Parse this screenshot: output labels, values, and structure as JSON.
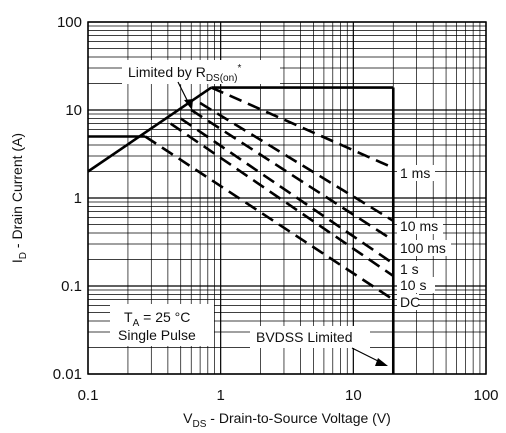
{
  "chart_data": {
    "type": "line",
    "title": "",
    "scale": {
      "x": "log",
      "y": "log"
    },
    "xlim": [
      0.1,
      100
    ],
    "ylim": [
      0.01,
      100
    ],
    "grid": true,
    "xlabel": {
      "prefix": "V",
      "sub": "DS",
      "rest": " - Drain-to-Source Voltage (V)"
    },
    "ylabel": {
      "prefix": "I",
      "sub": "D",
      "rest": " - Drain Current (A)"
    },
    "x_ticks": [
      {
        "value": 0.1,
        "label": "0.1"
      },
      {
        "value": 1,
        "label": "1"
      },
      {
        "value": 10,
        "label": "10"
      },
      {
        "value": 100,
        "label": "100"
      }
    ],
    "y_ticks": [
      {
        "value": 0.01,
        "label": "0.01"
      },
      {
        "value": 0.1,
        "label": "0.1"
      },
      {
        "value": 1,
        "label": "1"
      },
      {
        "value": 10,
        "label": "10"
      },
      {
        "value": 100,
        "label": "100"
      }
    ],
    "limits": {
      "rdson_line": {
        "x": [
          0.1,
          0.85
        ],
        "y": [
          2,
          18
        ]
      },
      "pulse_current_1ms": {
        "x": [
          0.85,
          20
        ],
        "y": 18
      },
      "dc_current": {
        "x": [
          0.1,
          0.27
        ],
        "y": 5
      },
      "bvdss_vertical": {
        "x": 20,
        "y": [
          0.01,
          18
        ]
      }
    },
    "series": [
      {
        "name": "1 ms",
        "x": [
          0.85,
          20
        ],
        "y": [
          18,
          2.2
        ]
      },
      {
        "name": "10 ms",
        "x": [
          0.7,
          20
        ],
        "y": [
          12,
          0.55
        ]
      },
      {
        "name": "100 ms",
        "x": [
          0.6,
          20
        ],
        "y": [
          10,
          0.33
        ]
      },
      {
        "name": "1 s",
        "x": [
          0.5,
          20
        ],
        "y": [
          8,
          0.18
        ]
      },
      {
        "name": "10 s",
        "x": [
          0.42,
          20
        ],
        "y": [
          7,
          0.13
        ]
      },
      {
        "name": "DC",
        "x": [
          0.27,
          20
        ],
        "y": [
          5,
          0.07
        ]
      }
    ],
    "annotations": {
      "rdson": {
        "prefix": "Limited by R",
        "sub": "DS(on)",
        "suffix": "*"
      },
      "conditions": {
        "line1_prefix": "T",
        "line1_sub": "A",
        "line1_rest": " = 25 °C",
        "line2": "Single Pulse"
      },
      "bvdss": "BVDSS Limited"
    }
  }
}
